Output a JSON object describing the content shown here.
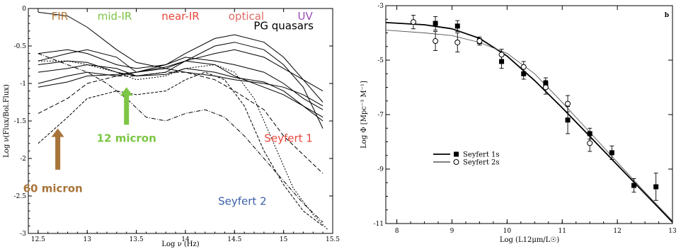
{
  "chart_data": [
    {
      "type": "line",
      "xlabel": "Log ν (Hz)",
      "ylabel": "Log ν(Flux/Bol.Flux)",
      "xlim": [
        12.4,
        15.5
      ],
      "ylim": [
        -3,
        0
      ],
      "x_ticks": [
        "12.5",
        "13",
        "13.5",
        "14",
        "14.5",
        "15",
        "15.5"
      ],
      "y_ticks": [
        "0",
        "-0.5",
        "-1",
        "-1.5",
        "-2",
        "-2.5",
        "-3"
      ],
      "band_labels": [
        {
          "text": "FIR",
          "color": "#b07a3a",
          "x": 12.72
        },
        {
          "text": "mid-IR",
          "color": "#7cc644",
          "x": 13.28
        },
        {
          "text": "near-IR",
          "color": "#e8463a",
          "x": 13.95
        },
        {
          "text": "optical",
          "color": "#e06a66",
          "x": 14.62
        },
        {
          "text": "UV",
          "color": "#9a4fb8",
          "x": 15.22
        }
      ],
      "annotations": [
        {
          "text": "PG quasars",
          "color": "#000000",
          "x": 15.0,
          "y": -0.28
        },
        {
          "text": "Seyfert 1",
          "color": "#e8463a",
          "x": 15.05,
          "y": -1.78
        },
        {
          "text": "Seyfert 2",
          "color": "#3a5fa8",
          "x": 14.58,
          "y": -2.62
        }
      ],
      "arrows": [
        {
          "label": "60 micron",
          "color": "#a8743a",
          "x": 12.7,
          "y_from": -2.15,
          "y_to": -1.6,
          "label_x": 12.65,
          "label_y": -2.45
        },
        {
          "label": "12 micron",
          "color": "#7cc644",
          "x": 13.4,
          "y_from": -1.55,
          "y_to": -1.05,
          "label_x": 13.4,
          "label_y": -1.78
        }
      ],
      "series": [
        {
          "name": "",
          "dash": "",
          "x": [
            12.5,
            12.8,
            13.0,
            13.3,
            13.5,
            13.8,
            14.0,
            14.3,
            14.5,
            14.8,
            15.0,
            15.2,
            15.4
          ],
          "y": [
            -0.05,
            -0.1,
            -0.25,
            -0.55,
            -0.72,
            -0.8,
            -0.85,
            -0.9,
            -0.95,
            -1.0,
            -1.05,
            -1.15,
            -1.3
          ]
        },
        {
          "name": "",
          "dash": "",
          "x": [
            12.5,
            12.8,
            13.0,
            13.3,
            13.5,
            13.8,
            14.0,
            14.3,
            14.5,
            14.8,
            15.0,
            15.2,
            15.4
          ],
          "y": [
            -0.7,
            -0.6,
            -0.55,
            -0.65,
            -0.85,
            -0.8,
            -0.7,
            -0.75,
            -0.9,
            -1.05,
            -1.15,
            -1.3,
            -1.45
          ]
        },
        {
          "name": "",
          "dash": "",
          "x": [
            12.5,
            12.8,
            13.0,
            13.3,
            13.5,
            13.8,
            14.0,
            14.3,
            14.5,
            14.8,
            15.0,
            15.2,
            15.4
          ],
          "y": [
            -0.6,
            -0.55,
            -0.6,
            -0.75,
            -0.8,
            -0.75,
            -0.65,
            -0.7,
            -0.75,
            -0.85,
            -1.0,
            -1.2,
            -1.35
          ]
        },
        {
          "name": "",
          "dash": "",
          "x": [
            12.5,
            12.8,
            13.0,
            13.3,
            13.5,
            13.8,
            14.0,
            14.3,
            14.5,
            14.8,
            15.0,
            15.2,
            15.4
          ],
          "y": [
            -1.0,
            -0.9,
            -0.85,
            -0.9,
            -0.85,
            -0.75,
            -0.6,
            -0.4,
            -0.35,
            -0.45,
            -0.65,
            -0.95,
            -1.25
          ]
        },
        {
          "name": "",
          "dash": "",
          "x": [
            12.5,
            12.8,
            13.0,
            13.3,
            13.5,
            13.8,
            14.0,
            14.3,
            14.5,
            14.8,
            15.0,
            15.2,
            15.4
          ],
          "y": [
            -0.85,
            -0.8,
            -0.75,
            -0.8,
            -0.9,
            -0.85,
            -0.7,
            -0.5,
            -0.45,
            -0.55,
            -0.75,
            -1.05,
            -1.6
          ]
        },
        {
          "name": "",
          "dash": "",
          "x": [
            12.5,
            12.8,
            13.0,
            13.3,
            13.5,
            13.8,
            14.0,
            14.3,
            14.5,
            14.8,
            15.0,
            15.2,
            15.4
          ],
          "y": [
            -0.75,
            -0.7,
            -0.72,
            -0.85,
            -0.9,
            -0.88,
            -0.8,
            -0.85,
            -0.92,
            -0.98,
            -1.1,
            -1.3,
            -1.5
          ]
        },
        {
          "name": "",
          "dash": "",
          "x": [
            12.5,
            12.8,
            13.0,
            13.3,
            13.5,
            13.8,
            14.0,
            14.3,
            14.5,
            14.8,
            15.0,
            15.2,
            15.4
          ],
          "y": [
            -1.05,
            -0.98,
            -0.9,
            -0.88,
            -0.85,
            -0.78,
            -0.7,
            -0.6,
            -0.55,
            -0.65,
            -0.8,
            -0.95,
            -1.1
          ]
        },
        {
          "name": "",
          "dash": "6,3",
          "x": [
            12.5,
            12.8,
            13.0,
            13.3,
            13.5,
            13.8,
            14.0,
            14.3,
            14.5,
            14.8,
            15.0,
            15.2,
            15.4
          ],
          "y": [
            -1.4,
            -1.2,
            -1.0,
            -0.9,
            -0.9,
            -0.85,
            -0.85,
            -0.95,
            -1.1,
            -1.35,
            -1.7,
            -1.95,
            -2.2
          ]
        },
        {
          "name": "",
          "dash": "6,2,1,2",
          "x": [
            12.5,
            12.8,
            13.0,
            13.2,
            13.4,
            13.6,
            13.8,
            14.0,
            14.2,
            14.4,
            14.6,
            14.8,
            15.0,
            15.2,
            15.4
          ],
          "y": [
            -0.6,
            -0.75,
            -0.85,
            -1.0,
            -1.2,
            -1.45,
            -1.5,
            -1.4,
            -1.35,
            -1.45,
            -1.7,
            -2.0,
            -2.3,
            -2.6,
            -2.85
          ]
        },
        {
          "name": "",
          "dash": "4,2",
          "x": [
            12.5,
            12.8,
            13.0,
            13.3,
            13.5,
            13.8,
            14.0,
            14.2,
            14.4,
            14.6,
            14.8,
            15.0,
            15.2,
            15.4
          ],
          "y": [
            -1.8,
            -1.45,
            -1.2,
            -1.1,
            -1.15,
            -1.1,
            -0.95,
            -0.85,
            -0.95,
            -1.3,
            -1.9,
            -2.35,
            -2.7,
            -2.9
          ]
        },
        {
          "name": "",
          "dash": "2,2",
          "x": [
            12.5,
            12.8,
            13.0,
            13.3,
            13.5,
            13.8,
            14.0,
            14.3,
            14.5,
            14.7,
            14.9,
            15.1,
            15.3,
            15.45
          ],
          "y": [
            -0.7,
            -0.7,
            -0.75,
            -0.85,
            -0.95,
            -0.9,
            -0.8,
            -0.75,
            -0.85,
            -1.2,
            -1.8,
            -2.4,
            -2.75,
            -2.95
          ]
        }
      ]
    },
    {
      "type": "scatter",
      "xlabel": "Log (L12μm/L☉)",
      "ylabel": "Log Φ [Mpc⁻³ M⁻¹]",
      "panel_label": "b",
      "xlim": [
        7.8,
        13.0
      ],
      "ylim": [
        -11.0,
        -3.0
      ],
      "x_ticks": [
        "8",
        "9",
        "10",
        "11",
        "12",
        "13"
      ],
      "y_ticks": [
        "-3",
        "-5",
        "-7",
        "-9",
        "-11"
      ],
      "legend": [
        {
          "name": "Seyfert 1s",
          "marker": "filled-square",
          "line": "thick"
        },
        {
          "name": "Seyfert 2s",
          "marker": "open-circle",
          "line": "thin"
        }
      ],
      "series": [
        {
          "name": "Seyfert 1s",
          "marker": "filled-square",
          "x": [
            8.7,
            9.1,
            9.5,
            9.9,
            10.3,
            10.7,
            11.1,
            11.5,
            11.9,
            12.3,
            12.7
          ],
          "y": [
            -3.65,
            -3.75,
            -4.3,
            -5.05,
            -5.5,
            -5.85,
            -7.2,
            -7.7,
            -8.4,
            -9.6,
            -9.65
          ],
          "err": [
            0.25,
            0.2,
            0.1,
            0.25,
            0.2,
            0.2,
            0.5,
            0.2,
            0.25,
            0.25,
            0.5
          ]
        },
        {
          "name": "Seyfert 2s",
          "marker": "open-circle",
          "x": [
            8.3,
            8.7,
            9.1,
            9.5,
            9.9,
            10.3,
            10.7,
            11.1,
            11.5
          ],
          "y": [
            -3.6,
            -4.3,
            -4.35,
            -4.3,
            -4.8,
            -5.25,
            -6.0,
            -6.6,
            -8.05
          ],
          "err": [
            0.25,
            0.35,
            0.35,
            0.15,
            0.2,
            0.2,
            0.25,
            0.3,
            0.3
          ]
        }
      ],
      "fits": [
        {
          "name": "Seyfert 1s",
          "style": "thick",
          "x": [
            7.8,
            8.5,
            9.0,
            9.5,
            10.0,
            10.5,
            11.0,
            11.5,
            12.0,
            12.5,
            13.0
          ],
          "y": [
            -3.62,
            -3.7,
            -3.85,
            -4.2,
            -4.85,
            -5.75,
            -6.75,
            -7.8,
            -8.85,
            -9.9,
            -10.95
          ]
        },
        {
          "name": "Seyfert 2s",
          "style": "thin",
          "x": [
            7.8,
            8.5,
            9.0,
            9.5,
            10.0,
            10.5,
            11.0,
            11.5,
            12.0,
            12.5,
            13.0
          ],
          "y": [
            -3.9,
            -4.0,
            -4.1,
            -4.35,
            -4.75,
            -5.5,
            -6.55,
            -7.65,
            -8.75,
            -9.85,
            -10.9
          ]
        }
      ]
    }
  ]
}
